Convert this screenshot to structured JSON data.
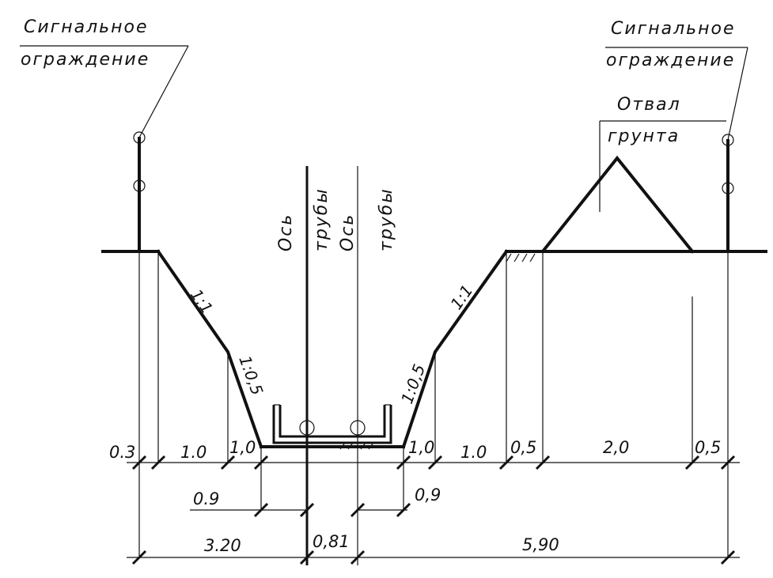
{
  "labels": {
    "signal_left_line1": "Сигнальное",
    "signal_left_line2": "ограждение",
    "signal_right_line1": "Сигнальное",
    "signal_right_line2": "ограждение",
    "spoil_line1": "Отвал",
    "spoil_line2": "грунта",
    "axis1_word1": "Ось",
    "axis1_word2": "трубы",
    "axis2_word1": "Ось",
    "axis2_word2": "трубы"
  },
  "slopes": {
    "left_upper": "1:1",
    "left_lower": "1:0,5",
    "right_upper": "1:1",
    "right_lower": "1:0,5"
  },
  "dimensions": {
    "row1": [
      "0.3",
      "1.0",
      "1,0",
      "1,0",
      "1.0",
      "0,5",
      "2,0",
      "0,5"
    ],
    "row2": [
      "0.9",
      "0,9"
    ],
    "row3": [
      "3.20",
      "0,81",
      "5,90"
    ]
  },
  "colors": {
    "line": "#111111",
    "background": "#ffffff"
  }
}
